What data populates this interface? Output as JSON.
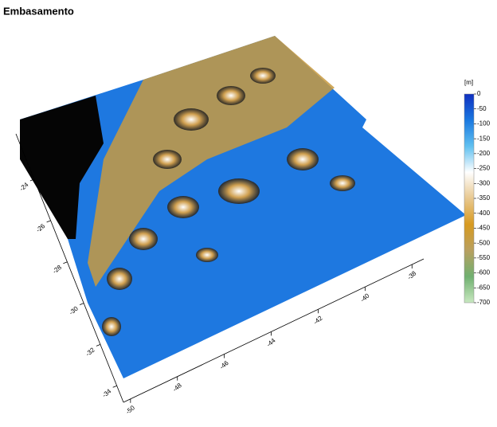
{
  "chart_data": {
    "type": "surface",
    "title": "Embasamento",
    "x": {
      "lim": [
        -50.3,
        -37.5
      ],
      "ticks": [
        -50,
        -48,
        -46,
        -44,
        -42,
        -40,
        -38
      ]
    },
    "y": {
      "lim": [
        -21.8,
        -34.8
      ],
      "ticks": [
        -24,
        -26,
        -28,
        -30,
        -32,
        -34
      ]
    },
    "colorbar": {
      "label": "[m]",
      "lim": [
        0,
        -700
      ],
      "ticks": [
        0,
        -50,
        -100,
        -150,
        -200,
        -250,
        -300,
        -350,
        -400,
        -450,
        -500,
        -550,
        -600,
        -650,
        -700
      ],
      "colors": [
        "#1030c0",
        "#1a78e0",
        "#60c0f0",
        "#ffffff",
        "#e8c890",
        "#d89a20",
        "#b8a060",
        "#70b070",
        "#c8e8c0"
      ]
    }
  }
}
